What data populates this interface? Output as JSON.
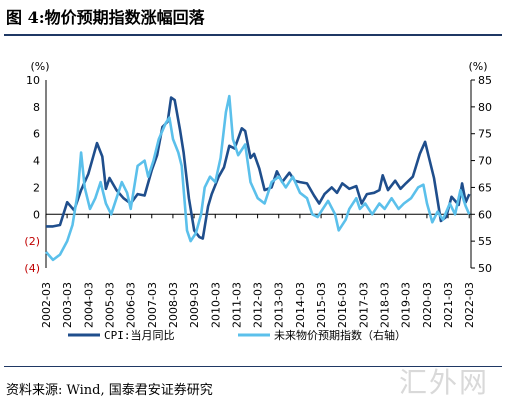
{
  "figure": {
    "title": "图 4:物价预期指数涨幅回落",
    "source": "资料来源: Wind, 国泰君安证券研究",
    "watermark": "汇外网"
  },
  "chart_data": {
    "type": "line",
    "left_axis": {
      "unit_label": "(%)",
      "ylim": [
        -4,
        10
      ],
      "tick_labels": [
        "(4)",
        "(2)",
        "0",
        "2",
        "4",
        "6",
        "8",
        "10"
      ],
      "tick_values": [
        -4,
        -2,
        0,
        2,
        4,
        6,
        8,
        10
      ]
    },
    "right_axis": {
      "unit_label": "(%)",
      "ylim": [
        50,
        85
      ],
      "tick_labels": [
        "50",
        "55",
        "60",
        "65",
        "70",
        "75",
        "80",
        "85"
      ],
      "tick_values": [
        50,
        55,
        60,
        65,
        70,
        75,
        80,
        85
      ]
    },
    "x_tick_labels": [
      "2002-03",
      "2003-03",
      "2004-03",
      "2005-03",
      "2006-03",
      "2007-03",
      "2008-03",
      "2009-03",
      "2010-03",
      "2011-03",
      "2012-03",
      "2013-03",
      "2014-03",
      "2015-03",
      "2016-03",
      "2017-03",
      "2018-03",
      "2019-03",
      "2020-03",
      "2021-03",
      "2022-03"
    ],
    "x_range": [
      2002.17,
      2022.25
    ],
    "grid": false,
    "legend_position": "bottom",
    "series": [
      {
        "name": "CPI:当月同比",
        "axis": "left",
        "color": "#1f4e8c",
        "points": [
          [
            2002.17,
            -0.9
          ],
          [
            2002.5,
            -0.9
          ],
          [
            2002.83,
            -0.8
          ],
          [
            2003.17,
            0.9
          ],
          [
            2003.5,
            0.3
          ],
          [
            2003.83,
            1.8
          ],
          [
            2004.17,
            3.0
          ],
          [
            2004.42,
            4.4
          ],
          [
            2004.58,
            5.3
          ],
          [
            2004.83,
            4.3
          ],
          [
            2005.0,
            1.9
          ],
          [
            2005.17,
            2.7
          ],
          [
            2005.5,
            1.8
          ],
          [
            2005.83,
            1.2
          ],
          [
            2006.17,
            0.8
          ],
          [
            2006.5,
            1.5
          ],
          [
            2006.83,
            1.4
          ],
          [
            2007.17,
            3.3
          ],
          [
            2007.42,
            4.4
          ],
          [
            2007.67,
            6.5
          ],
          [
            2007.92,
            6.9
          ],
          [
            2008.08,
            8.7
          ],
          [
            2008.25,
            8.5
          ],
          [
            2008.5,
            6.3
          ],
          [
            2008.67,
            4.6
          ],
          [
            2008.92,
            1.2
          ],
          [
            2009.17,
            -1.2
          ],
          [
            2009.42,
            -1.7
          ],
          [
            2009.58,
            -1.8
          ],
          [
            2009.83,
            0.6
          ],
          [
            2010.0,
            1.5
          ],
          [
            2010.33,
            2.8
          ],
          [
            2010.58,
            3.5
          ],
          [
            2010.83,
            5.1
          ],
          [
            2011.08,
            4.9
          ],
          [
            2011.42,
            6.4
          ],
          [
            2011.58,
            6.2
          ],
          [
            2011.83,
            4.2
          ],
          [
            2012.0,
            4.5
          ],
          [
            2012.25,
            3.4
          ],
          [
            2012.5,
            1.8
          ],
          [
            2012.83,
            2.0
          ],
          [
            2013.08,
            3.2
          ],
          [
            2013.33,
            2.4
          ],
          [
            2013.67,
            3.1
          ],
          [
            2013.92,
            2.5
          ],
          [
            2014.17,
            2.4
          ],
          [
            2014.5,
            2.3
          ],
          [
            2014.83,
            1.4
          ],
          [
            2015.08,
            0.8
          ],
          [
            2015.33,
            1.5
          ],
          [
            2015.67,
            2.0
          ],
          [
            2015.92,
            1.6
          ],
          [
            2016.17,
            2.3
          ],
          [
            2016.5,
            1.9
          ],
          [
            2016.83,
            2.1
          ],
          [
            2017.08,
            0.8
          ],
          [
            2017.33,
            1.5
          ],
          [
            2017.67,
            1.6
          ],
          [
            2017.92,
            1.8
          ],
          [
            2018.08,
            2.9
          ],
          [
            2018.33,
            1.8
          ],
          [
            2018.67,
            2.5
          ],
          [
            2018.92,
            1.9
          ],
          [
            2019.17,
            2.3
          ],
          [
            2019.5,
            2.8
          ],
          [
            2019.83,
            4.5
          ],
          [
            2020.08,
            5.4
          ],
          [
            2020.25,
            4.3
          ],
          [
            2020.5,
            2.7
          ],
          [
            2020.83,
            -0.5
          ],
          [
            2021.08,
            -0.2
          ],
          [
            2021.33,
            1.3
          ],
          [
            2021.67,
            0.7
          ],
          [
            2021.83,
            2.3
          ],
          [
            2022.0,
            0.9
          ],
          [
            2022.17,
            1.5
          ]
        ]
      },
      {
        "name": "未来物价预期指数（右轴）",
        "axis": "right",
        "color": "#5bc0eb",
        "points": [
          [
            2002.17,
            53.0
          ],
          [
            2002.5,
            51.5
          ],
          [
            2002.83,
            52.5
          ],
          [
            2003.17,
            55.0
          ],
          [
            2003.42,
            58.0
          ],
          [
            2003.67,
            64.0
          ],
          [
            2003.83,
            71.5
          ],
          [
            2004.0,
            65.0
          ],
          [
            2004.25,
            61.0
          ],
          [
            2004.5,
            63.0
          ],
          [
            2004.75,
            66.0
          ],
          [
            2005.0,
            62.0
          ],
          [
            2005.25,
            60.0
          ],
          [
            2005.5,
            63.0
          ],
          [
            2005.75,
            66.0
          ],
          [
            2006.0,
            64.0
          ],
          [
            2006.17,
            61.0
          ],
          [
            2006.5,
            69.0
          ],
          [
            2006.83,
            70.0
          ],
          [
            2007.0,
            67.0
          ],
          [
            2007.25,
            70.0
          ],
          [
            2007.5,
            74.0
          ],
          [
            2007.83,
            77.0
          ],
          [
            2008.0,
            78.0
          ],
          [
            2008.17,
            74.0
          ],
          [
            2008.42,
            71.5
          ],
          [
            2008.58,
            69.0
          ],
          [
            2008.83,
            57.0
          ],
          [
            2009.0,
            55.0
          ],
          [
            2009.25,
            56.5
          ],
          [
            2009.5,
            60.0
          ],
          [
            2009.67,
            65.0
          ],
          [
            2009.92,
            67.0
          ],
          [
            2010.17,
            66.0
          ],
          [
            2010.42,
            70.5
          ],
          [
            2010.67,
            79.0
          ],
          [
            2010.83,
            82.0
          ],
          [
            2011.0,
            74.0
          ],
          [
            2011.25,
            71.0
          ],
          [
            2011.58,
            73.0
          ],
          [
            2011.83,
            66.0
          ],
          [
            2012.17,
            63.0
          ],
          [
            2012.5,
            62.0
          ],
          [
            2012.83,
            66.0
          ],
          [
            2013.17,
            67.0
          ],
          [
            2013.5,
            65.0
          ],
          [
            2013.83,
            67.0
          ],
          [
            2014.17,
            64.0
          ],
          [
            2014.5,
            63.0
          ],
          [
            2014.75,
            60.0
          ],
          [
            2015.0,
            59.5
          ],
          [
            2015.25,
            61.0
          ],
          [
            2015.5,
            62.5
          ],
          [
            2015.83,
            60.0
          ],
          [
            2016.0,
            57.0
          ],
          [
            2016.33,
            59.0
          ],
          [
            2016.5,
            61.0
          ],
          [
            2016.83,
            63.0
          ],
          [
            2017.0,
            61.0
          ],
          [
            2017.25,
            62.0
          ],
          [
            2017.58,
            60.0
          ],
          [
            2017.92,
            62.0
          ],
          [
            2018.17,
            61.0
          ],
          [
            2018.5,
            63.0
          ],
          [
            2018.83,
            61.0
          ],
          [
            2019.08,
            62.0
          ],
          [
            2019.42,
            63.0
          ],
          [
            2019.75,
            65.0
          ],
          [
            2020.0,
            65.5
          ],
          [
            2020.17,
            62.0
          ],
          [
            2020.42,
            58.5
          ],
          [
            2020.67,
            60.5
          ],
          [
            2020.92,
            59.0
          ],
          [
            2021.25,
            62.0
          ],
          [
            2021.5,
            60.0
          ],
          [
            2021.75,
            64.5
          ],
          [
            2022.0,
            61.5
          ],
          [
            2022.17,
            60.0
          ]
        ]
      }
    ]
  }
}
